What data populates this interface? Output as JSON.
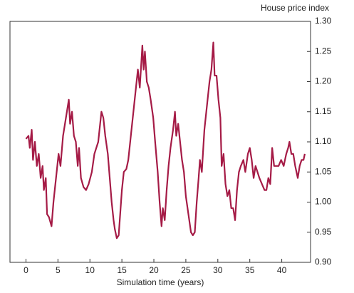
{
  "chart_data": {
    "type": "line",
    "y_axis_label": "House price index",
    "x_axis_label": "Simulation time (years)",
    "color": "#a51b46",
    "xlim": [
      -2.5,
      44.5
    ],
    "xticks": [
      0,
      5,
      10,
      15,
      20,
      25,
      30,
      35,
      40
    ],
    "ylim": [
      0.9,
      1.3
    ],
    "yticks": [
      {
        "value": 0.9,
        "label": "0.90"
      },
      0.95,
      {
        "value": 1.0,
        "label": "1.00"
      },
      1.05,
      {
        "value": 1.1,
        "label": "1.10"
      },
      1.15,
      {
        "value": 1.2,
        "label": "1.20"
      },
      1.25,
      {
        "value": 1.3,
        "label": "1.30"
      }
    ],
    "y_axis_side": "right",
    "x": [
      0,
      0.4,
      0.6,
      0.9,
      1.1,
      1.4,
      1.7,
      2.0,
      2.3,
      2.6,
      2.8,
      3.1,
      3.3,
      3.6,
      4.0,
      4.3,
      4.7,
      5.1,
      5.4,
      5.8,
      6.1,
      6.7,
      6.9,
      7.2,
      7.5,
      7.8,
      8.1,
      8.3,
      8.6,
      9.0,
      9.4,
      9.8,
      10.3,
      10.7,
      11.0,
      11.3,
      11.6,
      11.8,
      12.1,
      12.4,
      12.8,
      13.1,
      13.4,
      13.7,
      13.9,
      14.2,
      14.5,
      14.7,
      15.0,
      15.3,
      15.7,
      16.0,
      16.4,
      16.8,
      17.2,
      17.5,
      17.8,
      18.2,
      18.4,
      18.6,
      18.9,
      19.2,
      19.5,
      19.9,
      20.2,
      20.6,
      20.9,
      21.2,
      21.4,
      21.7,
      22.0,
      22.3,
      22.6,
      23.0,
      23.3,
      23.5,
      23.8,
      24.1,
      24.4,
      24.7,
      25.0,
      25.4,
      25.8,
      26.1,
      26.4,
      26.7,
      27.0,
      27.2,
      27.5,
      27.9,
      28.3,
      28.7,
      29.0,
      29.3,
      29.5,
      29.8,
      30.1,
      30.4,
      30.6,
      30.9,
      31.2,
      31.5,
      31.8,
      32.1,
      32.4,
      32.7,
      33.0,
      33.3,
      33.6,
      34.0,
      34.3,
      34.7,
      35.0,
      35.3,
      35.6,
      35.9,
      36.2,
      36.5,
      36.9,
      37.3,
      37.6,
      37.9,
      38.2,
      38.5,
      38.8,
      39.1,
      39.5,
      39.9,
      40.3,
      40.7,
      41.0,
      41.2,
      41.5,
      41.8,
      42.1,
      42.5,
      42.8,
      43.1,
      43.4,
      43.6
    ],
    "values": [
      1.105,
      1.11,
      1.09,
      1.12,
      1.07,
      1.1,
      1.06,
      1.08,
      1.04,
      1.06,
      1.02,
      1.04,
      0.98,
      0.975,
      0.96,
      1.0,
      1.04,
      1.08,
      1.06,
      1.11,
      1.13,
      1.17,
      1.13,
      1.15,
      1.11,
      1.1,
      1.06,
      1.09,
      1.04,
      1.025,
      1.02,
      1.03,
      1.05,
      1.08,
      1.09,
      1.1,
      1.13,
      1.15,
      1.14,
      1.11,
      1.08,
      1.04,
      1.0,
      0.97,
      0.955,
      0.94,
      0.945,
      0.975,
      1.02,
      1.05,
      1.055,
      1.07,
      1.11,
      1.15,
      1.19,
      1.22,
      1.19,
      1.26,
      1.22,
      1.25,
      1.2,
      1.19,
      1.17,
      1.14,
      1.1,
      1.05,
      1.0,
      0.96,
      0.99,
      0.97,
      1.02,
      1.06,
      1.09,
      1.12,
      1.15,
      1.11,
      1.13,
      1.1,
      1.07,
      1.05,
      1.01,
      0.98,
      0.95,
      0.945,
      0.95,
      1.0,
      1.04,
      1.07,
      1.05,
      1.12,
      1.16,
      1.2,
      1.22,
      1.265,
      1.21,
      1.21,
      1.17,
      1.14,
      1.06,
      1.08,
      1.03,
      1.01,
      1.02,
      0.99,
      0.99,
      0.97,
      1.02,
      1.05,
      1.06,
      1.07,
      1.05,
      1.08,
      1.09,
      1.07,
      1.04,
      1.06,
      1.05,
      1.04,
      1.03,
      1.02,
      1.02,
      1.04,
      1.03,
      1.09,
      1.06,
      1.06,
      1.06,
      1.07,
      1.06,
      1.08,
      1.09,
      1.1,
      1.08,
      1.08,
      1.06,
      1.04,
      1.06,
      1.07,
      1.07,
      1.08
    ]
  }
}
